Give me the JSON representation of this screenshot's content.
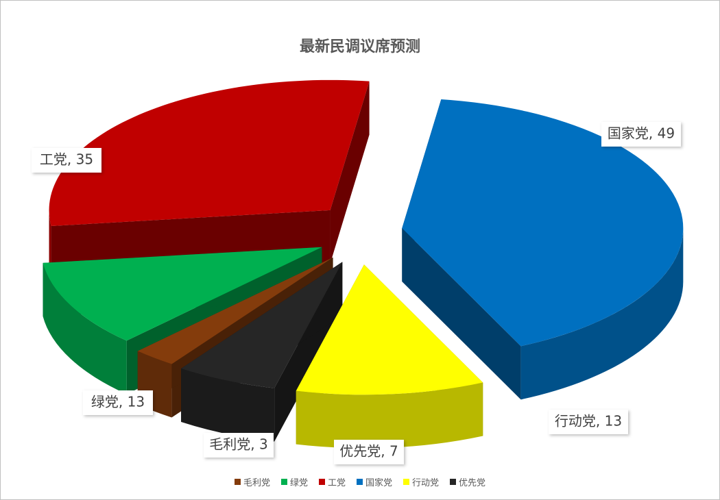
{
  "chart_data": {
    "type": "pie",
    "title": "最新民调议席预测",
    "slices": [
      {
        "name": "国家党",
        "value": 49,
        "label": "国家党, 49",
        "color": "#0070C0"
      },
      {
        "name": "行动党",
        "value": 13,
        "label": "行动党, 13",
        "color": "#FFFF00"
      },
      {
        "name": "优先党",
        "value": 7,
        "label": "优先党, 7",
        "color": "#262626"
      },
      {
        "name": "毛利党",
        "value": 3,
        "label": "毛利党, 3",
        "color": "#843C0C"
      },
      {
        "name": "绿党",
        "value": 13,
        "label": "绿党, 13",
        "color": "#00B050"
      },
      {
        "name": "工党",
        "value": 35,
        "label": "工党, 35",
        "color": "#C00000"
      }
    ],
    "legend": [
      "毛利党",
      "绿党",
      "工党",
      "国家党",
      "行动党",
      "优先党"
    ],
    "legend_position": "bottom",
    "style": "3d-exploded"
  }
}
